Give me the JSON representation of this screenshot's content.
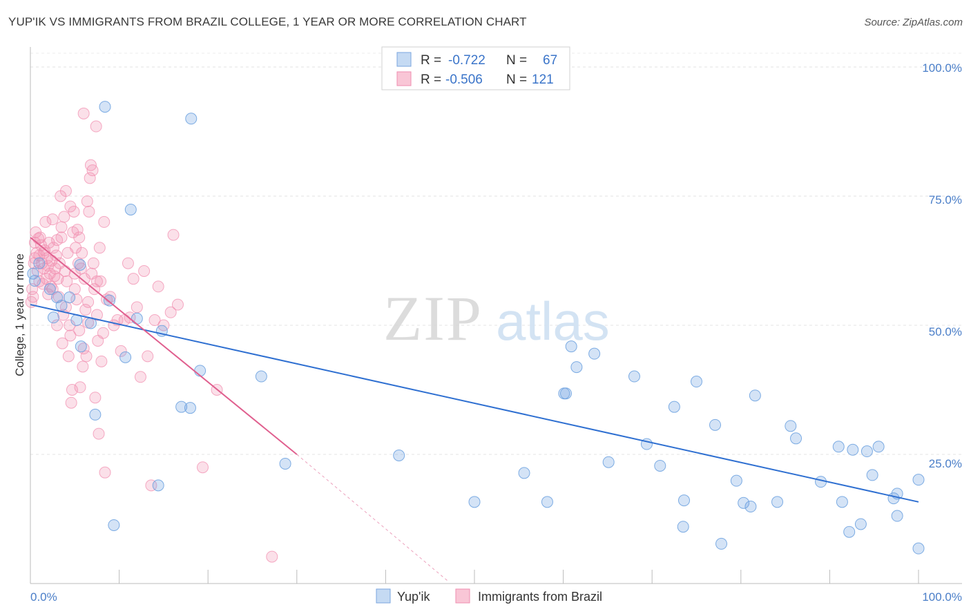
{
  "title": "YUP'IK VS IMMIGRANTS FROM BRAZIL COLLEGE, 1 YEAR OR MORE CORRELATION CHART",
  "source": "Source: ZipAtlas.com",
  "watermark": {
    "zip": "ZIP",
    "atlas": "atlas"
  },
  "legend": {
    "rows": [
      {
        "r_label": "R =",
        "r_value": "-0.722",
        "n_label": "N =",
        "n_value": "67"
      },
      {
        "r_label": "R =",
        "r_value": "-0.506",
        "n_label": "N =",
        "n_value": "121"
      }
    ]
  },
  "chart_data": {
    "type": "scatter",
    "title": "YUP'IK VS IMMIGRANTS FROM BRAZIL COLLEGE, 1 YEAR OR MORE CORRELATION CHART",
    "xlabel": "",
    "ylabel": "College, 1 year or more",
    "xlim": [
      0,
      100
    ],
    "ylim": [
      0,
      105
    ],
    "x_tick_labels": [
      {
        "value": 0,
        "label": "0.0%"
      },
      {
        "value": 100,
        "label": "100.0%"
      }
    ],
    "y_tick_labels": [
      {
        "value": 25,
        "label": "25.0%"
      },
      {
        "value": 50,
        "label": "50.0%"
      },
      {
        "value": 75,
        "label": "75.0%"
      },
      {
        "value": 100,
        "label": "100.0%"
      }
    ],
    "colors": {
      "yupik": "#6fa3e0",
      "yupik_line": "#2e6fd1",
      "brazil": "#f28fb0",
      "brazil_line": "#e0608f"
    },
    "series": [
      {
        "name": "Yup'ik",
        "r": -0.722,
        "n": 67,
        "trend": {
          "x0": 0,
          "y0": 54.0,
          "x1": 100,
          "y1": 15.8
        },
        "points": [
          [
            0.5,
            58.6
          ],
          [
            2.2,
            57.0
          ],
          [
            2.6,
            51.5
          ],
          [
            3.0,
            55.4
          ],
          [
            4.4,
            55.4
          ],
          [
            5.2,
            51.0
          ],
          [
            5.6,
            61.7
          ],
          [
            5.7,
            45.9
          ],
          [
            7.3,
            32.7
          ],
          [
            8.4,
            92.3
          ],
          [
            9.4,
            11.3
          ],
          [
            10.7,
            43.8
          ],
          [
            11.3,
            72.4
          ],
          [
            14.8,
            48.9
          ],
          [
            14.4,
            19.0
          ],
          [
            17.0,
            34.2
          ],
          [
            18.0,
            34.0
          ],
          [
            18.1,
            90.0
          ],
          [
            19.1,
            41.2
          ],
          [
            26.0,
            40.1
          ],
          [
            28.7,
            23.2
          ],
          [
            41.5,
            24.8
          ],
          [
            50.0,
            15.8
          ],
          [
            55.6,
            21.4
          ],
          [
            58.2,
            15.8
          ],
          [
            60.1,
            36.8
          ],
          [
            60.3,
            36.8
          ],
          [
            60.9,
            45.9
          ],
          [
            61.5,
            41.9
          ],
          [
            63.5,
            44.5
          ],
          [
            65.1,
            23.5
          ],
          [
            68.0,
            40.1
          ],
          [
            69.4,
            27.0
          ],
          [
            70.9,
            22.8
          ],
          [
            72.5,
            34.2
          ],
          [
            73.5,
            11.0
          ],
          [
            73.6,
            16.1
          ],
          [
            75.0,
            39.1
          ],
          [
            77.1,
            30.7
          ],
          [
            77.8,
            7.7
          ],
          [
            79.5,
            19.9
          ],
          [
            80.3,
            15.6
          ],
          [
            81.1,
            14.9
          ],
          [
            81.6,
            36.4
          ],
          [
            84.1,
            15.8
          ],
          [
            85.6,
            30.5
          ],
          [
            86.2,
            28.1
          ],
          [
            89.0,
            19.7
          ],
          [
            91.0,
            26.5
          ],
          [
            91.4,
            15.8
          ],
          [
            92.2,
            10.0
          ],
          [
            92.6,
            25.9
          ],
          [
            94.2,
            25.6
          ],
          [
            93.5,
            11.5
          ],
          [
            94.8,
            21.0
          ],
          [
            95.5,
            26.5
          ],
          [
            97.2,
            16.5
          ],
          [
            97.6,
            17.4
          ],
          [
            97.6,
            13.1
          ],
          [
            100.0,
            20.1
          ],
          [
            100.0,
            6.8
          ],
          [
            0.3,
            60.0
          ],
          [
            1.0,
            62.0
          ],
          [
            6.8,
            50.4
          ],
          [
            3.5,
            53.8
          ],
          [
            8.9,
            54.8
          ],
          [
            12.0,
            51.3
          ]
        ]
      },
      {
        "name": "Immigrants from Brazil",
        "r": -0.506,
        "n": 121,
        "trend": {
          "x0": 0,
          "y0": 67.0,
          "x1": 30.0,
          "y1": 25.0
        },
        "trend_dash": {
          "x0": 30.0,
          "y0": 25.0,
          "x1": 47.0,
          "y1": 0.5
        },
        "points": [
          [
            0.2,
            57.0
          ],
          [
            0.4,
            62.0
          ],
          [
            0.5,
            66.0
          ],
          [
            0.6,
            68.0
          ],
          [
            0.7,
            64.0
          ],
          [
            0.8,
            60.5
          ],
          [
            0.9,
            66.8
          ],
          [
            1.0,
            63.5
          ],
          [
            1.1,
            67.0
          ],
          [
            1.2,
            65.5
          ],
          [
            1.3,
            62.0
          ],
          [
            1.4,
            58.0
          ],
          [
            1.5,
            61.0
          ],
          [
            1.6,
            64.5
          ],
          [
            1.7,
            70.0
          ],
          [
            1.8,
            59.0
          ],
          [
            1.9,
            63.0
          ],
          [
            2.0,
            61.5
          ],
          [
            2.1,
            66.0
          ],
          [
            2.2,
            60.0
          ],
          [
            2.3,
            57.5
          ],
          [
            2.4,
            62.5
          ],
          [
            2.5,
            70.5
          ],
          [
            2.6,
            65.0
          ],
          [
            2.7,
            59.5
          ],
          [
            2.8,
            61.0
          ],
          [
            2.9,
            63.5
          ],
          [
            3.0,
            66.5
          ],
          [
            3.1,
            59.0
          ],
          [
            3.2,
            55.5
          ],
          [
            3.3,
            62.0
          ],
          [
            3.4,
            75.0
          ],
          [
            3.5,
            67.0
          ],
          [
            3.6,
            46.5
          ],
          [
            3.7,
            52.0
          ],
          [
            3.8,
            71.0
          ],
          [
            3.9,
            60.5
          ],
          [
            4.0,
            76.0
          ],
          [
            4.1,
            58.5
          ],
          [
            4.2,
            64.0
          ],
          [
            4.3,
            44.0
          ],
          [
            4.4,
            50.0
          ],
          [
            4.5,
            73.0
          ],
          [
            4.6,
            35.0
          ],
          [
            4.7,
            37.5
          ],
          [
            4.8,
            68.0
          ],
          [
            4.9,
            72.0
          ],
          [
            5.0,
            57.0
          ],
          [
            5.1,
            65.0
          ],
          [
            5.2,
            55.0
          ],
          [
            5.3,
            68.5
          ],
          [
            5.4,
            62.0
          ],
          [
            5.5,
            49.0
          ],
          [
            5.6,
            38.0
          ],
          [
            5.7,
            61.0
          ],
          [
            5.8,
            64.0
          ],
          [
            5.9,
            42.0
          ],
          [
            6.0,
            91.0
          ],
          [
            6.1,
            59.0
          ],
          [
            6.2,
            53.0
          ],
          [
            6.3,
            44.0
          ],
          [
            6.4,
            74.0
          ],
          [
            6.5,
            50.5
          ],
          [
            6.6,
            72.0
          ],
          [
            6.7,
            78.5
          ],
          [
            6.8,
            81.0
          ],
          [
            6.9,
            60.0
          ],
          [
            7.0,
            80.0
          ],
          [
            7.1,
            62.0
          ],
          [
            7.2,
            57.0
          ],
          [
            7.3,
            36.0
          ],
          [
            7.4,
            88.5
          ],
          [
            7.5,
            58.5
          ],
          [
            7.6,
            47.0
          ],
          [
            7.7,
            29.0
          ],
          [
            7.8,
            65.0
          ],
          [
            7.9,
            58.5
          ],
          [
            8.0,
            43.0
          ],
          [
            8.2,
            48.5
          ],
          [
            8.3,
            70.0
          ],
          [
            8.4,
            21.5
          ],
          [
            8.6,
            55.0
          ],
          [
            9.0,
            55.5
          ],
          [
            9.4,
            50.0
          ],
          [
            9.8,
            51.0
          ],
          [
            10.2,
            45.0
          ],
          [
            10.6,
            51.0
          ],
          [
            11.0,
            62.0
          ],
          [
            11.2,
            51.5
          ],
          [
            11.6,
            59.0
          ],
          [
            12.0,
            53.5
          ],
          [
            12.4,
            40.0
          ],
          [
            12.8,
            60.5
          ],
          [
            13.2,
            44.0
          ],
          [
            13.6,
            19.0
          ],
          [
            14.0,
            51.0
          ],
          [
            14.4,
            57.5
          ],
          [
            15.0,
            50.0
          ],
          [
            15.8,
            52.5
          ],
          [
            16.1,
            67.5
          ],
          [
            16.6,
            54.0
          ],
          [
            19.4,
            22.5
          ],
          [
            21.0,
            37.5
          ],
          [
            27.2,
            5.2
          ],
          [
            2.0,
            56.0
          ],
          [
            1.0,
            58.5
          ],
          [
            3.0,
            50.0
          ],
          [
            4.0,
            53.5
          ],
          [
            5.0,
            60.0
          ],
          [
            6.0,
            45.5
          ],
          [
            0.3,
            55.5
          ],
          [
            0.5,
            63.0
          ],
          [
            1.5,
            64.0
          ],
          [
            2.5,
            57.0
          ],
          [
            3.5,
            69.0
          ],
          [
            4.5,
            48.0
          ],
          [
            5.5,
            67.0
          ],
          [
            6.5,
            54.5
          ],
          [
            7.5,
            52.0
          ],
          [
            0.1,
            54.5
          ]
        ]
      }
    ]
  },
  "bottom_legend": [
    {
      "label": "Yup'ik"
    },
    {
      "label": "Immigrants from Brazil"
    }
  ]
}
